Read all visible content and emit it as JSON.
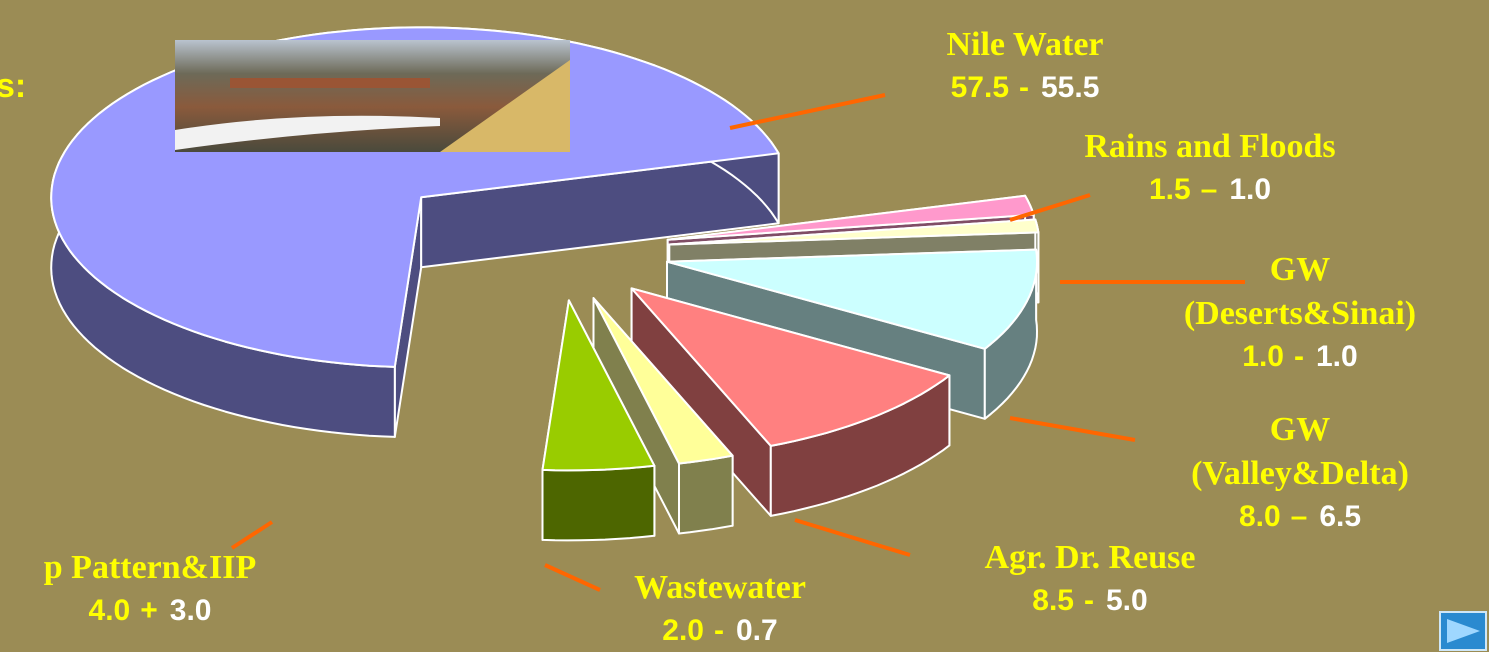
{
  "chart_data": {
    "type": "pie3d",
    "title_fragment": "s:",
    "labels": [
      [
        "Rains and Floods"
      ],
      [
        "GW",
        "(Deserts&Sinai)"
      ],
      [
        "GW",
        "(Valley&Delta)"
      ],
      [
        "Agr. Dr. Reuse"
      ],
      [
        "Wastewater"
      ],
      [
        "p Pattern&IIP"
      ],
      [
        "Nile Water"
      ]
    ],
    "values": [
      1.5,
      1.0,
      8.0,
      8.5,
      2.0,
      4.0,
      57.5
    ],
    "value_labels": [
      "1.5",
      "1.0",
      "8.0",
      "8.5",
      "2.0",
      "4.0",
      "57.5"
    ],
    "separators": [
      "–",
      "-",
      "–",
      "-",
      "-",
      "+",
      "-"
    ],
    "targets": [
      1.0,
      1.0,
      6.5,
      5.0,
      0.7,
      3.0,
      55.5
    ],
    "target_labels": [
      "1.0",
      "1.0",
      "6.5",
      "5.0",
      "0.7",
      "3.0",
      "55.5"
    ],
    "colors": [
      "#ff99cc",
      "#ffffcc",
      "#ccffff",
      "#ff8080",
      "#ffff99",
      "#99cc00",
      "#9999ff"
    ],
    "side_colors": [
      "#804d66",
      "#808066",
      "#668080",
      "#804040",
      "#80804d",
      "#4d6600",
      "#4d4d80"
    ]
  }
}
